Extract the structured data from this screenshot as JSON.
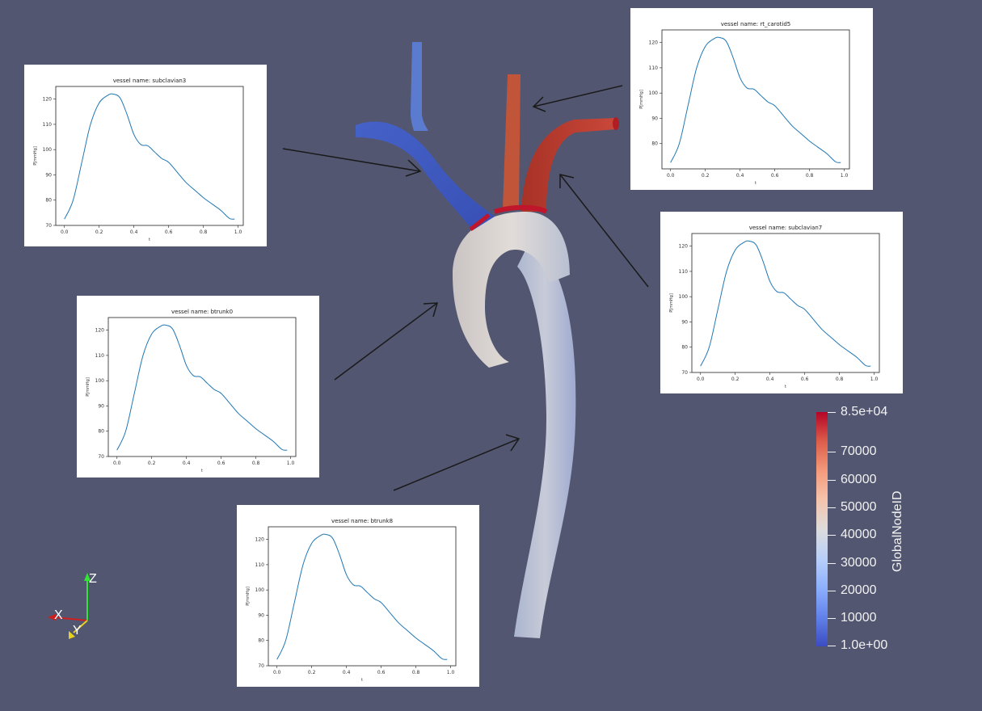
{
  "scene": {
    "background_color": "#525670",
    "aorta_colors": {
      "high": "#b2182b",
      "mid": "#dddcdc",
      "low": "#3b4cc0"
    }
  },
  "colorbar": {
    "title": "GlobalNodeID",
    "ticks": [
      "8.5e+04",
      "70000",
      "60000",
      "50000",
      "40000",
      "30000",
      "20000",
      "10000",
      "1.0e+00"
    ],
    "colormap": [
      "#b40426",
      "#dc5d4a",
      "#f49a7b",
      "#f5c4ac",
      "#dddcdc",
      "#b9d0f9",
      "#8db0fe",
      "#6282ea",
      "#3b4cc0"
    ]
  },
  "orientation_axes": {
    "x": "X",
    "y": "Y",
    "z": "Z"
  },
  "plots": [
    {
      "id": "subclavian3",
      "title": "vessel name: subclavian3",
      "xlabel": "t",
      "ylabel": "P[mmHg]",
      "chart_data": {
        "type": "line",
        "title": "vessel name: subclavian3",
        "xlabel": "t",
        "ylabel": "P[mmHg]",
        "xlim": [
          -0.05,
          1.03
        ],
        "ylim": [
          70,
          125
        ],
        "xticks": [
          "0.0",
          "0.2",
          "0.4",
          "0.6",
          "0.8",
          "1.0"
        ],
        "yticks": [
          "70",
          "80",
          "90",
          "100",
          "110",
          "120"
        ],
        "x": [
          0.0,
          0.05,
          0.1,
          0.15,
          0.2,
          0.25,
          0.28,
          0.32,
          0.36,
          0.4,
          0.44,
          0.48,
          0.52,
          0.56,
          0.6,
          0.65,
          0.7,
          0.75,
          0.8,
          0.85,
          0.9,
          0.95,
          0.98
        ],
        "y": [
          72.5,
          80,
          95,
          110,
          118.5,
          121.5,
          122,
          120.5,
          114,
          106,
          102,
          101.5,
          99,
          96.5,
          95,
          91,
          87,
          84,
          81,
          78.5,
          76,
          72.8,
          72.5
        ]
      }
    },
    {
      "id": "rt_carotid5",
      "title": "vessel name: rt_carotid5",
      "xlabel": "t",
      "ylabel": "P[mmHg]",
      "chart_data": {
        "type": "line",
        "title": "vessel name: rt_carotid5",
        "xlabel": "t",
        "ylabel": "P[mmHg]",
        "xlim": [
          -0.05,
          1.03
        ],
        "ylim": [
          70,
          125
        ],
        "xticks": [
          "0.0",
          "0.2",
          "0.4",
          "0.6",
          "0.8",
          "1.0"
        ],
        "yticks": [
          "80",
          "90",
          "100",
          "110",
          "120"
        ],
        "x": [
          0.0,
          0.05,
          0.1,
          0.15,
          0.2,
          0.25,
          0.28,
          0.32,
          0.36,
          0.4,
          0.44,
          0.48,
          0.52,
          0.56,
          0.6,
          0.65,
          0.7,
          0.75,
          0.8,
          0.85,
          0.9,
          0.95,
          0.98
        ],
        "y": [
          72.5,
          80,
          95,
          110,
          118.5,
          121.5,
          122,
          120.5,
          114,
          106,
          102,
          101.5,
          99,
          96.5,
          95,
          91,
          87,
          84,
          81,
          78.5,
          76,
          72.8,
          72.5
        ]
      }
    },
    {
      "id": "subclavian7",
      "title": "vessel name: subclavian7",
      "xlabel": "t",
      "ylabel": "P[mmHg]",
      "chart_data": {
        "type": "line",
        "title": "vessel name: subclavian7",
        "xlabel": "t",
        "ylabel": "P[mmHg]",
        "xlim": [
          -0.05,
          1.03
        ],
        "ylim": [
          70,
          125
        ],
        "xticks": [
          "0.0",
          "0.2",
          "0.4",
          "0.6",
          "0.8",
          "1.0"
        ],
        "yticks": [
          "70",
          "80",
          "90",
          "100",
          "110",
          "120"
        ],
        "x": [
          0.0,
          0.05,
          0.1,
          0.15,
          0.2,
          0.25,
          0.28,
          0.32,
          0.36,
          0.4,
          0.44,
          0.48,
          0.52,
          0.56,
          0.6,
          0.65,
          0.7,
          0.75,
          0.8,
          0.85,
          0.9,
          0.95,
          0.98
        ],
        "y": [
          72.5,
          80,
          95,
          110,
          118.5,
          121.5,
          122,
          120.5,
          114,
          106,
          102,
          101.5,
          99,
          96.5,
          95,
          91,
          87,
          84,
          81,
          78.5,
          76,
          72.8,
          72.5
        ]
      }
    },
    {
      "id": "btrunk0",
      "title": "vessel name: btrunk0",
      "xlabel": "t",
      "ylabel": "P[mmHg]",
      "chart_data": {
        "type": "line",
        "title": "vessel name: btrunk0",
        "xlabel": "t",
        "ylabel": "P[mmHg]",
        "xlim": [
          -0.05,
          1.03
        ],
        "ylim": [
          70,
          125
        ],
        "xticks": [
          "0.0",
          "0.2",
          "0.4",
          "0.6",
          "0.8",
          "1.0"
        ],
        "yticks": [
          "70",
          "80",
          "90",
          "100",
          "110",
          "120"
        ],
        "x": [
          0.0,
          0.05,
          0.1,
          0.15,
          0.2,
          0.25,
          0.28,
          0.32,
          0.36,
          0.4,
          0.44,
          0.48,
          0.52,
          0.56,
          0.6,
          0.65,
          0.7,
          0.75,
          0.8,
          0.85,
          0.9,
          0.95,
          0.98
        ],
        "y": [
          72.5,
          80,
          95,
          110,
          118.5,
          121.5,
          122,
          120.5,
          114,
          106,
          102,
          101.5,
          99,
          96.5,
          95,
          91,
          87,
          84,
          81,
          78.5,
          76,
          72.8,
          72.5
        ]
      }
    },
    {
      "id": "btrunk8",
      "title": "vessel name: btrunk8",
      "xlabel": "t",
      "ylabel": "P[mmHg]",
      "chart_data": {
        "type": "line",
        "title": "vessel name: btrunk8",
        "xlabel": "t",
        "ylabel": "P[mmHg]",
        "xlim": [
          -0.05,
          1.03
        ],
        "ylim": [
          70,
          125
        ],
        "xticks": [
          "0.0",
          "0.2",
          "0.4",
          "0.6",
          "0.8",
          "1.0"
        ],
        "yticks": [
          "70",
          "80",
          "90",
          "100",
          "110",
          "120"
        ],
        "x": [
          0.0,
          0.05,
          0.1,
          0.15,
          0.2,
          0.25,
          0.28,
          0.32,
          0.36,
          0.4,
          0.44,
          0.48,
          0.52,
          0.56,
          0.6,
          0.65,
          0.7,
          0.75,
          0.8,
          0.85,
          0.9,
          0.95,
          0.98
        ],
        "y": [
          72.5,
          80,
          95,
          110,
          118.5,
          121.5,
          122,
          120.5,
          114,
          106,
          102,
          101.5,
          99,
          96.5,
          95,
          91,
          87,
          84,
          81,
          78.5,
          76,
          72.8,
          72.5
        ]
      }
    }
  ]
}
